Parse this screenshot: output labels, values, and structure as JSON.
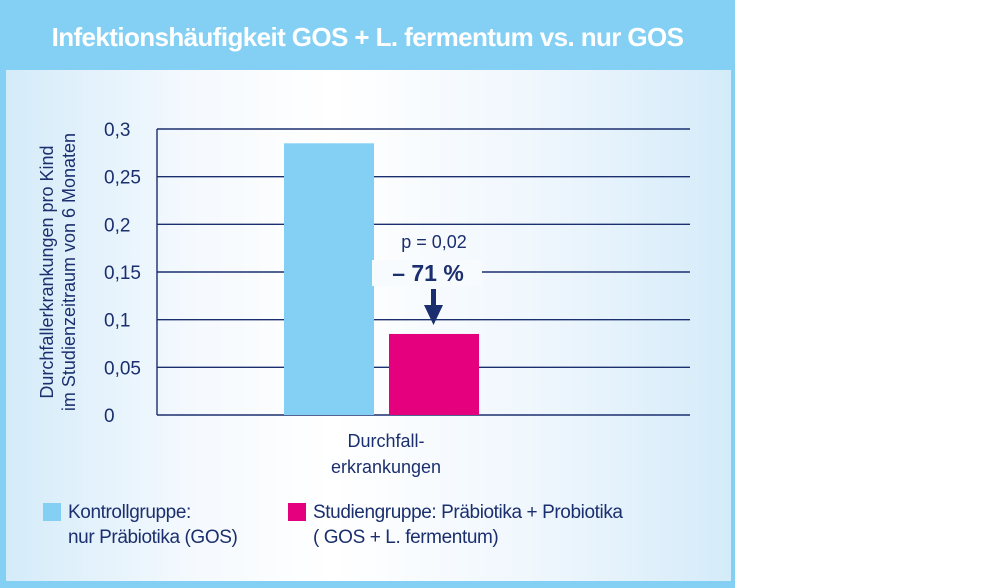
{
  "title": "Infektionshäufigkeit GOS + L. fermentum vs. nur GOS",
  "chart_data": {
    "type": "bar",
    "title": "Infektionshäufigkeit GOS + L. fermentum vs. nur GOS",
    "ylabel_lines": [
      "Durchfallerkrankungen pro Kind",
      "im Studienzeitraum von 6 Monaten"
    ],
    "xlabel_lines": [
      "Durchfall-",
      "erkrankungen"
    ],
    "categories": [
      "Durchfallerkrankungen"
    ],
    "series": [
      {
        "name": "Kontrollgruppe: nur Präbiotika (GOS)",
        "values": [
          0.285
        ],
        "color": "#84d0f4"
      },
      {
        "name": "Studiengruppe: Präbiotika + Probiotika (GOS + L. fermentum)",
        "values": [
          0.085
        ],
        "color": "#e5007d"
      }
    ],
    "ylim": [
      0,
      0.3
    ],
    "yticks": [
      0,
      0.05,
      0.1,
      0.15,
      0.2,
      0.25,
      0.3
    ],
    "ytick_labels": [
      "0",
      "0,05",
      "0,1",
      "0,15",
      "0,2",
      "0,25",
      "0,3"
    ],
    "grid": true,
    "annotations": {
      "p_value": "p = 0,02",
      "reduction": "– 71 %"
    },
    "legend_placement": "bottom"
  },
  "legend": [
    {
      "line1": "Kontrollgruppe:",
      "line2": "nur Präbiotika (GOS)",
      "color": "#84d0f4"
    },
    {
      "line1": "Studiengruppe: Präbiotika + Probiotika",
      "line2": "( GOS + L. fermentum)",
      "color": "#e5007d"
    }
  ]
}
